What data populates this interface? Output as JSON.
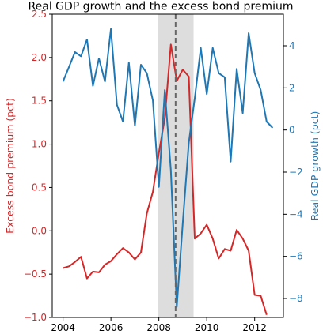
{
  "chart_data": {
    "type": "line",
    "title": "Real GDP growth and the excess bond premium",
    "xlim": [
      2003.55,
      2013.2
    ],
    "x_ticks": [
      2004,
      2006,
      2008,
      2010,
      2012
    ],
    "recession_band": [
      2007.95,
      2009.45
    ],
    "event_line_x": 2008.7,
    "left_axis": {
      "label": "Excess bond premium (pct)",
      "color": "#d62728",
      "ylim": [
        -1.0,
        2.5
      ],
      "ticks": [
        -1.0,
        -0.5,
        0.0,
        0.5,
        1.0,
        1.5,
        2.0,
        2.5
      ],
      "tick_labels": [
        "−1.0",
        "−0.5",
        "0.0",
        "0.5",
        "1.0",
        "1.5",
        "2.0",
        "2.5"
      ]
    },
    "right_axis": {
      "label": "Real GDP growth (pct)",
      "color": "#1f77b4",
      "ylim": [
        -8.9,
        5.5
      ],
      "ticks": [
        -8,
        -6,
        -4,
        -2,
        0,
        2,
        4
      ],
      "tick_labels": [
        "−8",
        "−6",
        "−4",
        "−2",
        "0",
        "2",
        "4"
      ]
    },
    "series": [
      {
        "axis": "left",
        "color": "#d62728",
        "x": [
          2004.0,
          2004.25,
          2004.5,
          2004.75,
          2005.0,
          2005.25,
          2005.5,
          2005.75,
          2006.0,
          2006.25,
          2006.5,
          2006.75,
          2007.0,
          2007.25,
          2007.5,
          2007.75,
          2008.0,
          2008.25,
          2008.5,
          2008.75,
          2009.0,
          2009.25,
          2009.5,
          2009.75,
          2010.0,
          2010.25,
          2010.5,
          2010.75,
          2011.0,
          2011.25,
          2011.5,
          2011.75,
          2012.0,
          2012.25,
          2012.5,
          2012.75
        ],
        "values": [
          -0.43,
          -0.41,
          -0.36,
          -0.3,
          -0.55,
          -0.47,
          -0.48,
          -0.39,
          -0.35,
          -0.27,
          -0.2,
          -0.25,
          -0.33,
          -0.25,
          0.2,
          0.45,
          0.9,
          1.3,
          2.15,
          1.73,
          1.86,
          1.78,
          -0.09,
          -0.03,
          0.07,
          -0.09,
          -0.32,
          -0.21,
          -0.23,
          0.01,
          -0.09,
          -0.23,
          -0.74,
          -0.75,
          -0.97,
          null
        ]
      },
      {
        "axis": "right",
        "color": "#1f77b4",
        "x": [
          2004.0,
          2004.25,
          2004.5,
          2004.75,
          2005.0,
          2005.25,
          2005.5,
          2005.75,
          2006.0,
          2006.25,
          2006.5,
          2006.75,
          2007.0,
          2007.25,
          2007.5,
          2007.75,
          2008.0,
          2008.25,
          2008.5,
          2008.75,
          2009.0,
          2009.25,
          2009.5,
          2009.75,
          2010.0,
          2010.25,
          2010.5,
          2010.75,
          2011.0,
          2011.25,
          2011.5,
          2011.75,
          2012.0,
          2012.25,
          2012.5,
          2012.75,
          2013.0
        ],
        "values": [
          2.3,
          3.0,
          3.7,
          3.5,
          4.3,
          2.1,
          3.4,
          2.3,
          4.8,
          1.2,
          0.4,
          3.2,
          0.2,
          3.1,
          2.7,
          1.4,
          -2.7,
          1.9,
          -1.9,
          -8.4,
          -4.4,
          -0.6,
          1.5,
          3.9,
          1.7,
          3.9,
          2.7,
          2.5,
          -1.5,
          2.9,
          0.8,
          4.6,
          2.7,
          1.9,
          0.4,
          0.1,
          null
        ]
      }
    ]
  }
}
